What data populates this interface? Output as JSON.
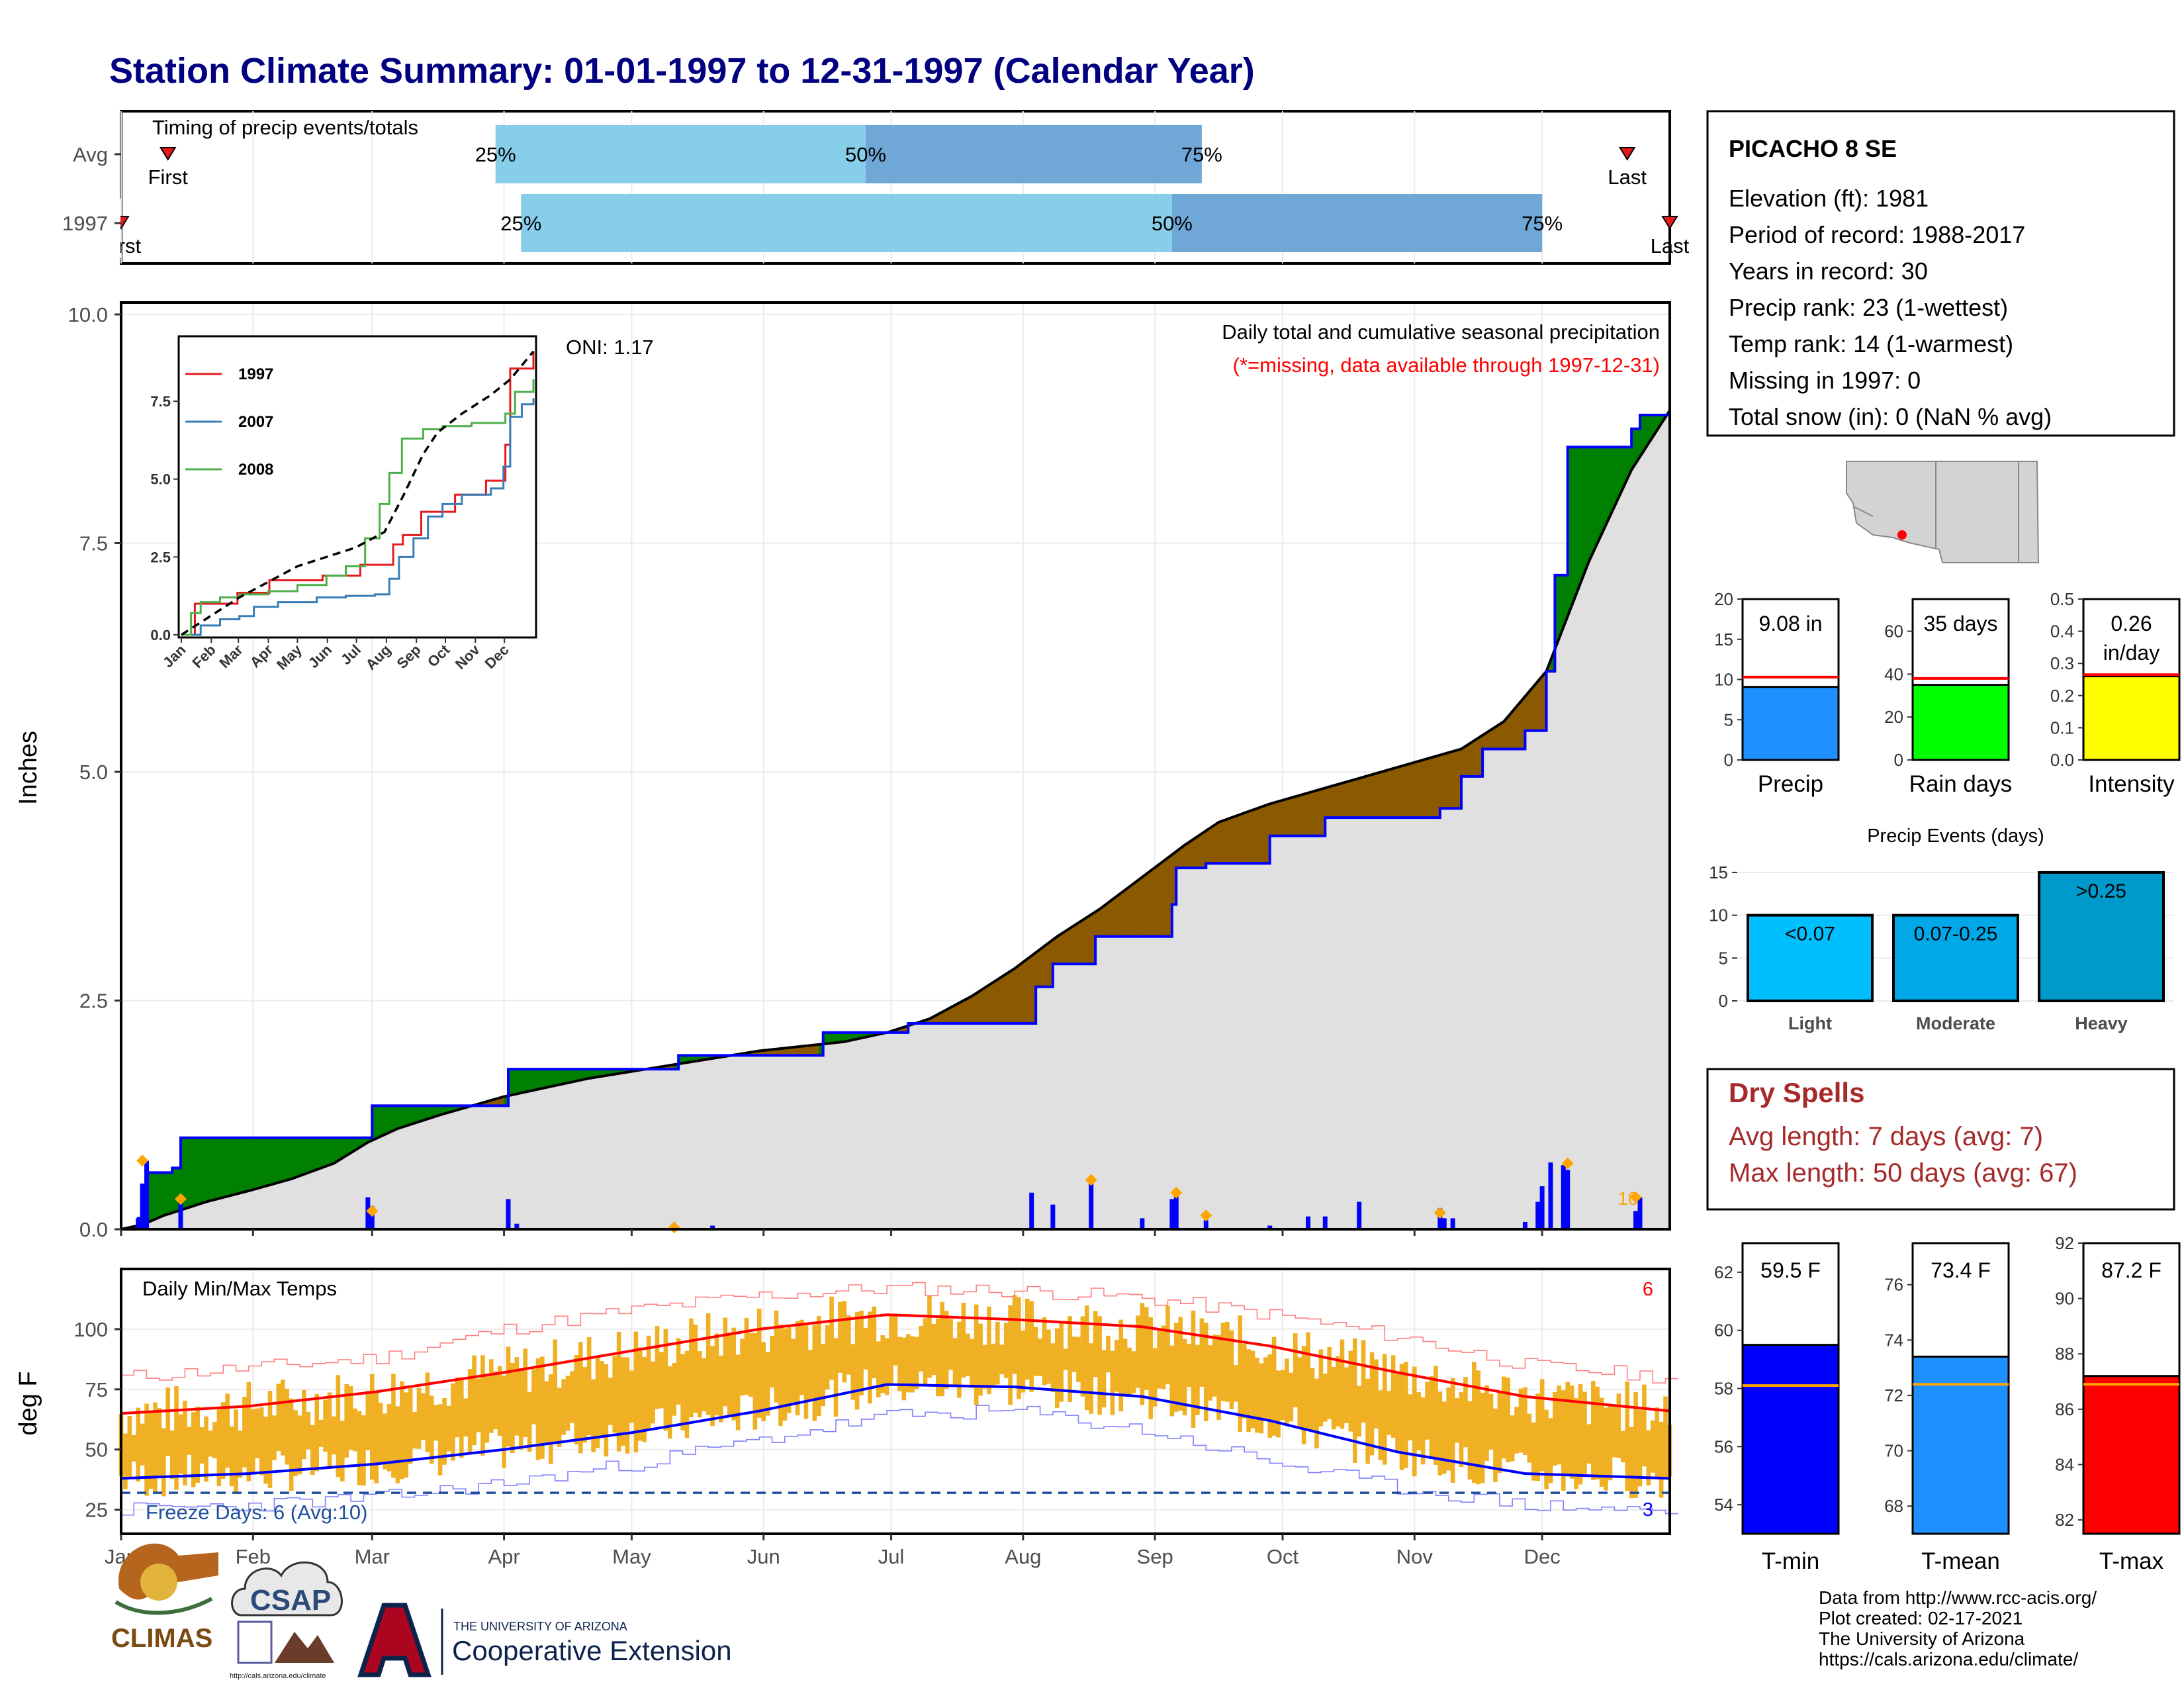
{
  "title": "Station Climate Summary: 01-01-1997 to 12-31-1997 (Calendar Year)",
  "months": [
    "Jan",
    "Feb",
    "Mar",
    "Apr",
    "May",
    "Jun",
    "Jul",
    "Aug",
    "Sep",
    "Oct",
    "Nov",
    "Dec"
  ],
  "timing": {
    "label": "Timing of precip events/totals",
    "rows": [
      {
        "name": "Avg",
        "first_label": "First",
        "last_label": "Last",
        "first_doy": 11,
        "last_doy": 354,
        "p25": 88,
        "p50": 175,
        "p75": 254,
        "p25_label": "25%",
        "p50_label": "50%",
        "p75_label": "75%"
      },
      {
        "name": "1997",
        "first_label": "First",
        "last_label": "Last",
        "first_doy": 0,
        "last_doy": 364,
        "p25": 94,
        "p50": 247,
        "p75": 334,
        "p25_label": "25%",
        "p50_label": "50%",
        "p75_label": "75%"
      }
    ]
  },
  "precip": {
    "ylabel": "Inches",
    "yticks": [
      0.0,
      2.5,
      5.0,
      7.5,
      10.0
    ],
    "ytick_labels": [
      "0.0",
      "2.5",
      "5.0",
      "7.5",
      "10.0"
    ],
    "ymax": 10,
    "oni": "ONI: 1.17",
    "desc": "Daily total and cumulative seasonal precipitation",
    "missing_note": "(*=missing, data available through 1997-12-31)",
    "cum_avg": [
      [
        0,
        0
      ],
      [
        5,
        0.05
      ],
      [
        10,
        0.15
      ],
      [
        20,
        0.3
      ],
      [
        30,
        0.42
      ],
      [
        40,
        0.55
      ],
      [
        50,
        0.72
      ],
      [
        58,
        0.95
      ],
      [
        65,
        1.1
      ],
      [
        75,
        1.25
      ],
      [
        90,
        1.45
      ],
      [
        110,
        1.65
      ],
      [
        130,
        1.8
      ],
      [
        150,
        1.95
      ],
      [
        170,
        2.05
      ],
      [
        180,
        2.15
      ],
      [
        190,
        2.3
      ],
      [
        200,
        2.55
      ],
      [
        210,
        2.85
      ],
      [
        220,
        3.2
      ],
      [
        230,
        3.5
      ],
      [
        240,
        3.85
      ],
      [
        250,
        4.2
      ],
      [
        258,
        4.45
      ],
      [
        270,
        4.65
      ],
      [
        285,
        4.85
      ],
      [
        300,
        5.05
      ],
      [
        315,
        5.25
      ],
      [
        325,
        5.55
      ],
      [
        335,
        6.1
      ],
      [
        345,
        7.3
      ],
      [
        355,
        8.3
      ],
      [
        364,
        8.95
      ]
    ],
    "cum_1997": [
      [
        0,
        0
      ],
      [
        4,
        0.12
      ],
      [
        6,
        0.62
      ],
      [
        12,
        0.67
      ],
      [
        14,
        1.0
      ],
      [
        34,
        1.0
      ],
      [
        58,
        1.0
      ],
      [
        59,
        1.35
      ],
      [
        60,
        1.35
      ],
      [
        90,
        1.35
      ],
      [
        91,
        1.75
      ],
      [
        92,
        1.75
      ],
      [
        130,
        1.75
      ],
      [
        131,
        1.9
      ],
      [
        146,
        1.9
      ],
      [
        165,
        2.15
      ],
      [
        185,
        2.25
      ],
      [
        214,
        2.25
      ],
      [
        215,
        2.65
      ],
      [
        219,
        2.9
      ],
      [
        228,
        2.9
      ],
      [
        229,
        3.2
      ],
      [
        240,
        3.2
      ],
      [
        247,
        3.55
      ],
      [
        248,
        3.95
      ],
      [
        255,
        4.0
      ],
      [
        270,
        4.3
      ],
      [
        283,
        4.5
      ],
      [
        310,
        4.6
      ],
      [
        315,
        4.95
      ],
      [
        320,
        5.25
      ],
      [
        330,
        5.45
      ],
      [
        335,
        6.1
      ],
      [
        337,
        7.15
      ],
      [
        340,
        8.55
      ],
      [
        355,
        8.75
      ],
      [
        357,
        8.9
      ],
      [
        364,
        9.08
      ]
    ],
    "daily_1997": [
      [
        4,
        0.12
      ],
      [
        5,
        0.5
      ],
      [
        6,
        0.75
      ],
      [
        14,
        0.33
      ],
      [
        58,
        0.35
      ],
      [
        59,
        0.25
      ],
      [
        91,
        0.33
      ],
      [
        93,
        0.06
      ],
      [
        130,
        0.02
      ],
      [
        139,
        0.04
      ],
      [
        214,
        0.4
      ],
      [
        219,
        0.27
      ],
      [
        228,
        0.54
      ],
      [
        240,
        0.12
      ],
      [
        247,
        0.33
      ],
      [
        248,
        0.4
      ],
      [
        255,
        0.1
      ],
      [
        270,
        0.04
      ],
      [
        279,
        0.14
      ],
      [
        283,
        0.14
      ],
      [
        291,
        0.3
      ],
      [
        310,
        0.23
      ],
      [
        311,
        0.12
      ],
      [
        313,
        0.12
      ],
      [
        330,
        0.08
      ],
      [
        333,
        0.3
      ],
      [
        334,
        0.47
      ],
      [
        336,
        0.73
      ],
      [
        339,
        0.7
      ],
      [
        340,
        0.65
      ],
      [
        356,
        0.2
      ],
      [
        357,
        0.35
      ]
    ],
    "event_markers": [
      [
        5,
        0.75
      ],
      [
        14,
        0.33
      ],
      [
        59,
        0.2
      ],
      [
        130,
        0.02
      ],
      [
        228,
        0.54
      ],
      [
        248,
        0.4
      ],
      [
        255,
        0.15
      ],
      [
        310,
        0.18
      ],
      [
        340,
        0.72
      ],
      [
        356,
        0.35
      ]
    ],
    "top_right_label": "10"
  },
  "inset": {
    "yticks": [
      0.0,
      2.5,
      5.0,
      7.5
    ],
    "ytick_labels": [
      "0.0",
      "2.5",
      "5.0",
      "7.5"
    ],
    "ymax": 9.5,
    "series": [
      {
        "name": "1997",
        "color": "#e41a1c",
        "points": [
          [
            0,
            0
          ],
          [
            14,
            1.0
          ],
          [
            58,
            1.35
          ],
          [
            91,
            1.75
          ],
          [
            146,
            1.9
          ],
          [
            185,
            2.25
          ],
          [
            214,
            2.25
          ],
          [
            219,
            2.9
          ],
          [
            229,
            3.2
          ],
          [
            248,
            3.95
          ],
          [
            283,
            4.5
          ],
          [
            315,
            4.95
          ],
          [
            335,
            6.1
          ],
          [
            340,
            8.55
          ],
          [
            364,
            9.1
          ]
        ]
      },
      {
        "name": "2007",
        "color": "#377eb8",
        "points": [
          [
            0,
            0
          ],
          [
            20,
            0.3
          ],
          [
            40,
            0.5
          ],
          [
            60,
            0.6
          ],
          [
            75,
            0.9
          ],
          [
            100,
            1.05
          ],
          [
            140,
            1.2
          ],
          [
            170,
            1.25
          ],
          [
            200,
            1.3
          ],
          [
            215,
            1.8
          ],
          [
            225,
            2.5
          ],
          [
            240,
            3.1
          ],
          [
            255,
            3.8
          ],
          [
            270,
            4.2
          ],
          [
            290,
            4.5
          ],
          [
            320,
            4.7
          ],
          [
            333,
            5.4
          ],
          [
            340,
            7.0
          ],
          [
            352,
            7.4
          ],
          [
            364,
            7.6
          ]
        ]
      },
      {
        "name": "2008",
        "color": "#4daf4a",
        "points": [
          [
            0,
            0
          ],
          [
            10,
            0.7
          ],
          [
            20,
            1.05
          ],
          [
            40,
            1.2
          ],
          [
            60,
            1.3
          ],
          [
            90,
            1.4
          ],
          [
            120,
            1.6
          ],
          [
            150,
            1.9
          ],
          [
            170,
            2.2
          ],
          [
            190,
            3.1
          ],
          [
            205,
            4.2
          ],
          [
            215,
            5.2
          ],
          [
            228,
            6.3
          ],
          [
            250,
            6.6
          ],
          [
            270,
            6.7
          ],
          [
            300,
            6.8
          ],
          [
            335,
            7.1
          ],
          [
            345,
            7.8
          ],
          [
            364,
            8.2
          ]
        ]
      }
    ],
    "avg_points": [
      [
        0,
        0
      ],
      [
        30,
        0.6
      ],
      [
        60,
        1.2
      ],
      [
        90,
        1.7
      ],
      [
        120,
        2.2
      ],
      [
        150,
        2.5
      ],
      [
        180,
        2.8
      ],
      [
        210,
        3.3
      ],
      [
        230,
        4.5
      ],
      [
        250,
        5.8
      ],
      [
        265,
        6.5
      ],
      [
        290,
        7.1
      ],
      [
        320,
        7.7
      ],
      [
        340,
        8.2
      ],
      [
        364,
        9.1
      ]
    ]
  },
  "temps": {
    "label": "Daily Min/Max Temps",
    "ylabel": "deg F",
    "yticks": [
      25,
      50,
      75,
      100
    ],
    "ytick_labels": [
      "25",
      "50",
      "75",
      "100"
    ],
    "ymin": 15,
    "ymax": 125,
    "freeze_line": 32,
    "freeze_label": "Freeze Days: 6 (Avg:10)",
    "top_right_count": "6",
    "bottom_right_count": "3",
    "avg_max": [
      [
        0,
        65
      ],
      [
        30,
        68
      ],
      [
        60,
        74
      ],
      [
        90,
        82
      ],
      [
        120,
        91
      ],
      [
        150,
        100
      ],
      [
        180,
        106
      ],
      [
        210,
        104
      ],
      [
        240,
        101
      ],
      [
        270,
        93
      ],
      [
        300,
        82
      ],
      [
        330,
        72
      ],
      [
        364,
        66
      ]
    ],
    "avg_min": [
      [
        0,
        38
      ],
      [
        30,
        40
      ],
      [
        60,
        44
      ],
      [
        90,
        50
      ],
      [
        120,
        57
      ],
      [
        150,
        66
      ],
      [
        180,
        77
      ],
      [
        210,
        76
      ],
      [
        240,
        72
      ],
      [
        270,
        62
      ],
      [
        300,
        49
      ],
      [
        330,
        40
      ],
      [
        364,
        38
      ]
    ],
    "rec_max": [
      [
        0,
        80
      ],
      [
        30,
        84
      ],
      [
        60,
        88
      ],
      [
        90,
        100
      ],
      [
        120,
        108
      ],
      [
        150,
        114
      ],
      [
        180,
        117
      ],
      [
        210,
        116
      ],
      [
        240,
        113
      ],
      [
        270,
        106
      ],
      [
        300,
        97
      ],
      [
        330,
        85
      ],
      [
        364,
        80
      ]
    ],
    "rec_min": [
      [
        0,
        25
      ],
      [
        30,
        27
      ],
      [
        60,
        30
      ],
      [
        90,
        36
      ],
      [
        120,
        44
      ],
      [
        150,
        54
      ],
      [
        180,
        64
      ],
      [
        210,
        66
      ],
      [
        240,
        58
      ],
      [
        270,
        45
      ],
      [
        300,
        34
      ],
      [
        330,
        27
      ],
      [
        364,
        24
      ]
    ]
  },
  "station": {
    "name": "PICACHO 8 SE",
    "lines": [
      "Elevation (ft): 1981",
      "Period of record: 1988-2017",
      "Years in record: 30",
      "Precip rank: 23 (1-wettest)",
      "Temp rank: 14 (1-warmest)",
      "Missing in 1997: 0",
      "Total snow (in): 0 (NaN % avg)"
    ]
  },
  "mini_precip": [
    {
      "label": "Precip",
      "value": 9.08,
      "value_text": "9.08 in",
      "avg": 10.3,
      "ymax": 20,
      "yticks": [
        0,
        5,
        10,
        15,
        20
      ],
      "ytick_labels": [
        "0",
        "5",
        "10",
        "15",
        "20"
      ],
      "color": "#1e90ff"
    },
    {
      "label": "Rain days",
      "value": 35,
      "value_text": "35 days",
      "avg": 38,
      "ymax": 75,
      "yticks": [
        0,
        20,
        40,
        60
      ],
      "ytick_labels": [
        "0",
        "20",
        "40",
        "60"
      ],
      "color": "#00ff00"
    },
    {
      "label": "Intensity",
      "value": 0.26,
      "value_text": "0.26",
      "value_text2": "in/day",
      "avg": 0.265,
      "ymax": 0.5,
      "yticks": [
        0.0,
        0.1,
        0.2,
        0.3,
        0.4,
        0.5
      ],
      "ytick_labels": [
        "0.0",
        "0.1",
        "0.2",
        "0.3",
        "0.4",
        "0.5"
      ],
      "color": "#ffff00"
    }
  ],
  "events": {
    "title": "Precip Events (days)",
    "yticks": [
      0,
      5,
      10,
      15
    ],
    "ytick_labels": [
      "0",
      "5",
      "10",
      "15"
    ],
    "ymax": 16,
    "bars": [
      {
        "cat": "Light",
        "value": 10,
        "range": "<0.07",
        "color": "#00bfff"
      },
      {
        "cat": "Moderate",
        "value": 10,
        "range": "0.07-0.25",
        "color": "#00a8e8"
      },
      {
        "cat": "Heavy",
        "value": 15,
        "range": ">0.25",
        "color": "#0099cc"
      }
    ]
  },
  "dry_spells": {
    "title": "Dry Spells",
    "avg_line": "Avg length: 7 days (avg: 7)",
    "max_line": "Max length: 50 days (avg: 67)"
  },
  "mini_temp": [
    {
      "label": "T-min",
      "value": 59.5,
      "value_text": "59.5 F",
      "avg": 58.1,
      "ymin": 53,
      "ymax": 63,
      "yticks": [
        54,
        56,
        58,
        60,
        62
      ],
      "ytick_labels": [
        "54",
        "56",
        "58",
        "60",
        "62"
      ],
      "color": "#0000ff"
    },
    {
      "label": "T-mean",
      "value": 73.4,
      "value_text": "73.4 F",
      "avg": 72.4,
      "ymin": 67,
      "ymax": 77.5,
      "yticks": [
        68,
        70,
        72,
        74,
        76
      ],
      "ytick_labels": [
        "68",
        "70",
        "72",
        "74",
        "76"
      ],
      "color": "#1e90ff"
    },
    {
      "label": "T-max",
      "value": 87.2,
      "value_text": "87.2 F",
      "avg": 86.9,
      "ymin": 81.5,
      "ymax": 92,
      "yticks": [
        82,
        84,
        86,
        88,
        90,
        92
      ],
      "ytick_labels": [
        "82",
        "84",
        "86",
        "88",
        "90",
        "92"
      ],
      "color": "#ff0000"
    }
  ],
  "credits": [
    "Data from http://www.rcc-acis.org/",
    "Plot created: 02-17-2021",
    "The University of Arizona",
    "https://cals.arizona.edu/climate/"
  ],
  "logos": {
    "climas": "CLIMAS",
    "csap": "CSAP",
    "csap_url": "http://cals.arizona.edu/climate",
    "ua_small": "THE UNIVERSITY OF ARIZONA",
    "ua_big": "Cooperative Extension"
  },
  "colors": {
    "title": "#000080",
    "above_avg": "#8b5a00",
    "below_avg": "#008000",
    "daily_bar": "#0000ff",
    "event": "#ffa500",
    "temp_bar": "#f0b023",
    "avg_max": "#ff0000",
    "avg_min": "#0000ff",
    "dry_spells": "#a52a2a"
  }
}
